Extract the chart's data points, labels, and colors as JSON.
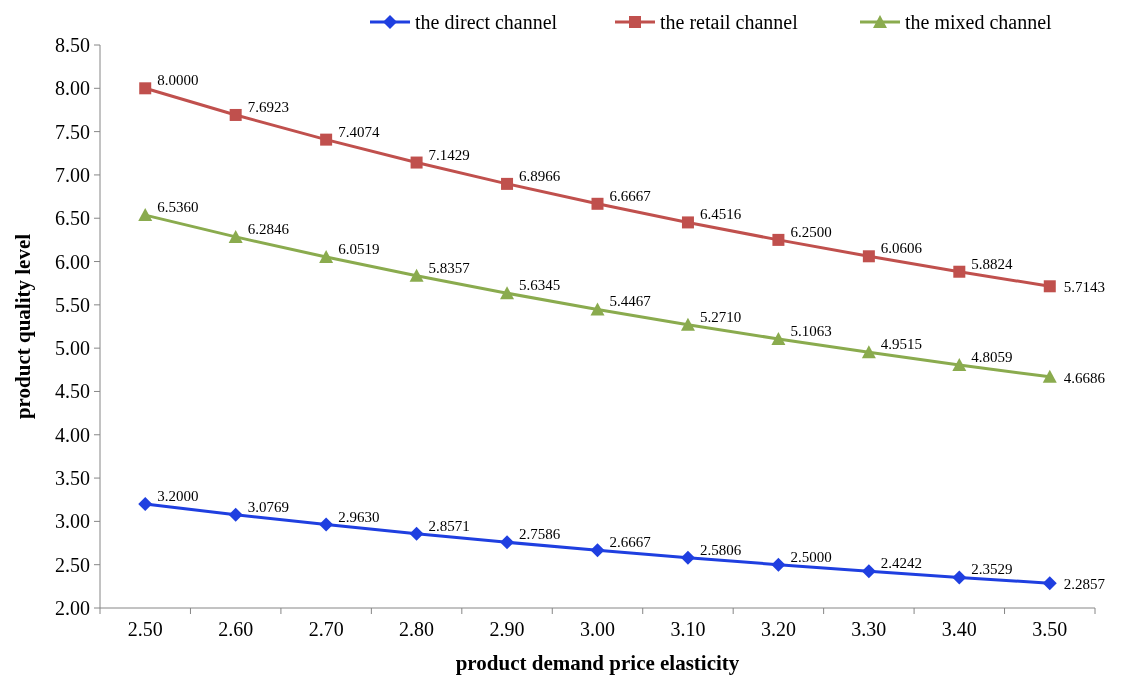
{
  "chart_data": {
    "type": "line",
    "xlabel": "product demand price elasticity",
    "ylabel": "product quality level",
    "categories": [
      "2.50",
      "2.60",
      "2.70",
      "2.80",
      "2.90",
      "3.00",
      "3.10",
      "3.20",
      "3.30",
      "3.40",
      "3.50"
    ],
    "ylim": [
      2,
      8.5
    ],
    "yticks": [
      {
        "value": 2,
        "label": "2.00"
      },
      {
        "value": 2.5,
        "label": "2.50"
      },
      {
        "value": 3,
        "label": "3.00"
      },
      {
        "value": 3.5,
        "label": "3.50"
      },
      {
        "value": 4,
        "label": "4.00"
      },
      {
        "value": 4.5,
        "label": "4.50"
      },
      {
        "value": 5,
        "label": "5.00"
      },
      {
        "value": 5.5,
        "label": "5.50"
      },
      {
        "value": 6,
        "label": "6.00"
      },
      {
        "value": 6.5,
        "label": "6.50"
      },
      {
        "value": 7,
        "label": "7.00"
      },
      {
        "value": 7.5,
        "label": "7.50"
      },
      {
        "value": 8,
        "label": "8.00"
      },
      {
        "value": 8.5,
        "label": "8.50"
      }
    ],
    "grid": false,
    "legend": "top",
    "series": [
      {
        "name": "the direct channel",
        "color": "#1f3fe0",
        "marker": "diamond",
        "values": [
          3.2,
          3.0769,
          2.963,
          2.8571,
          2.7586,
          2.6667,
          2.5806,
          2.5,
          2.4242,
          2.3529,
          2.2857
        ],
        "value_labels": [
          "3.2000",
          "3.0769",
          "2.9630",
          "2.8571",
          "2.7586",
          "2.6667",
          "2.5806",
          "2.5000",
          "2.4242",
          "2.3529",
          "2.2857"
        ]
      },
      {
        "name": "the retail channel",
        "color": "#c0504d",
        "marker": "square",
        "values": [
          8,
          7.6923,
          7.4074,
          7.1429,
          6.8966,
          6.6667,
          6.4516,
          6.25,
          6.0606,
          5.8824,
          5.7143
        ],
        "value_labels": [
          "8.0000",
          "7.6923",
          "7.4074",
          "7.1429",
          "6.8966",
          "6.6667",
          "6.4516",
          "6.2500",
          "6.0606",
          "5.8824",
          "5.7143"
        ]
      },
      {
        "name": "the mixed channel",
        "color": "#8aab4e",
        "marker": "triangle",
        "values": [
          6.536,
          6.2846,
          6.0519,
          5.8357,
          5.6345,
          5.4467,
          5.271,
          5.1063,
          4.9515,
          4.8059,
          4.6686
        ],
        "value_labels": [
          "6.5360",
          "6.2846",
          "6.0519",
          "5.8357",
          "5.6345",
          "5.4467",
          "5.2710",
          "5.1063",
          "4.9515",
          "4.8059",
          "4.6686"
        ]
      }
    ]
  }
}
